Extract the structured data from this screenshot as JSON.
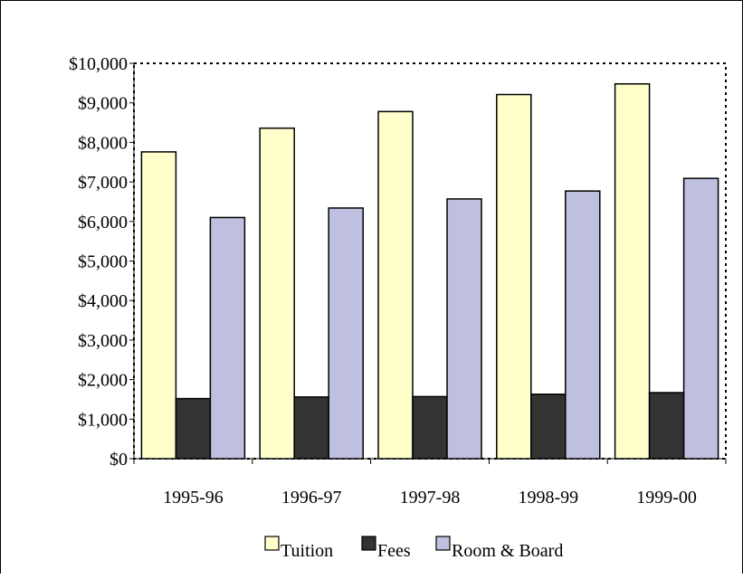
{
  "chart_data": {
    "type": "bar",
    "categories": [
      "1995-96",
      "1996-97",
      "1997-98",
      "1998-99",
      "1999-00"
    ],
    "series": [
      {
        "name": "Tuition",
        "values": [
          7760,
          8360,
          8780,
          9210,
          9480
        ],
        "color": "#FFFFCC"
      },
      {
        "name": "Fees",
        "values": [
          1520,
          1560,
          1570,
          1630,
          1670
        ],
        "color": "#333333"
      },
      {
        "name": "Room & Board",
        "values": [
          6100,
          6340,
          6570,
          6770,
          7090
        ],
        "color": "#BFBFDF"
      }
    ],
    "yticks": [
      "$0",
      "$1,000",
      "$2,000",
      "$3,000",
      "$4,000",
      "$5,000",
      "$6,000",
      "$7,000",
      "$8,000",
      "$9,000",
      "$10,000"
    ],
    "ylim": [
      0,
      10000
    ],
    "grid": false,
    "legend_position": "bottom"
  }
}
